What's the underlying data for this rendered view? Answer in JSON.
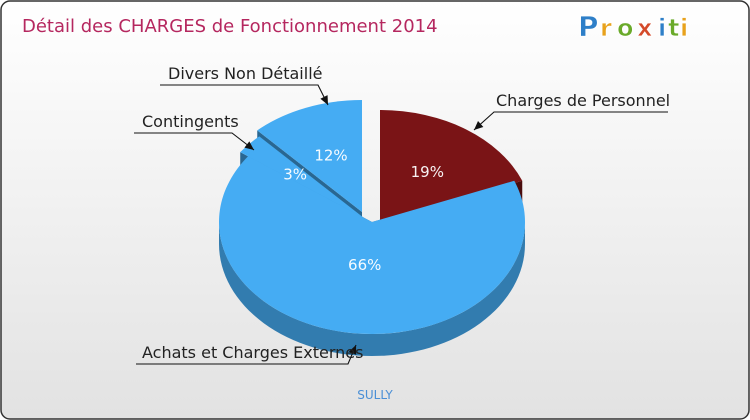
{
  "brand": {
    "letters": [
      "P",
      "r",
      "o",
      "x",
      "i",
      "t",
      "i"
    ],
    "colors": [
      "#2e7fc8",
      "#e8a21c",
      "#6aaa2a",
      "#d44a2a",
      "#2e7fc8",
      "#6aaa2a",
      "#e8a21c"
    ]
  },
  "chart_data": {
    "type": "pie",
    "title": "Détail des CHARGES de Fonctionnement 2014",
    "subtitle": "SULLY",
    "slices": [
      {
        "label": "Charges de Personnel",
        "value": 19,
        "value_label": "19%",
        "color": "#7a1416"
      },
      {
        "label": "Achats et Charges Externes",
        "value": 66,
        "value_label": "66%",
        "color": "#45acf3"
      },
      {
        "label": "Contingents",
        "value": 3,
        "value_label": "3%",
        "color": "#45acf3"
      },
      {
        "label": "Divers Non Détaillé",
        "value": 12,
        "value_label": "12%",
        "color": "#45acf3"
      }
    ]
  },
  "colors": {
    "title": "#b5275f",
    "subtitle": "#4a8fd6",
    "label_text": "#222222",
    "border": "#333333",
    "background_top": "#ffffff",
    "background_bottom": "#e2e2e2"
  }
}
